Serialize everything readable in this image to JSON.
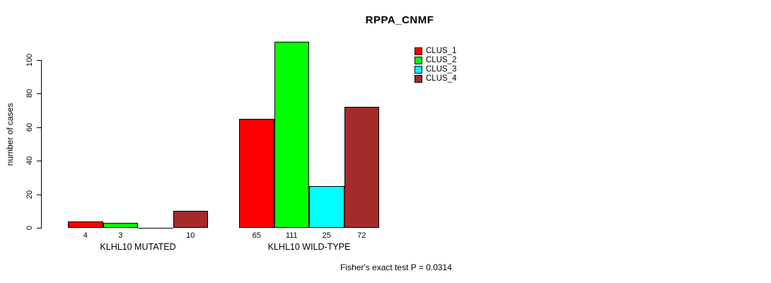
{
  "title": "RPPA_CNMF",
  "footer": "Fisher's exact test P = 0.0314",
  "y_axis": {
    "label": "number of cases",
    "ticks": [
      0,
      20,
      40,
      60,
      80,
      100
    ]
  },
  "legend": [
    {
      "label": "CLUS_1",
      "color": "#FF0000"
    },
    {
      "label": "CLUS_2",
      "color": "#00FF00"
    },
    {
      "label": "CLUS_3",
      "color": "#00FFFF"
    },
    {
      "label": "CLUS_4",
      "color": "#A52A2A"
    }
  ],
  "chart_data": {
    "type": "bar",
    "title": "RPPA_CNMF",
    "xlabel": "",
    "ylabel": "number of cases",
    "ylim": [
      0,
      117
    ],
    "axis_ticks": [
      0,
      20,
      40,
      60,
      80,
      100
    ],
    "grid": false,
    "legend_position": "top-right",
    "categories": [
      "KLHL10 MUTATED",
      "KLHL10 WILD-TYPE"
    ],
    "series": [
      {
        "name": "CLUS_1",
        "color": "#FF0000",
        "values": [
          4,
          65
        ]
      },
      {
        "name": "CLUS_2",
        "color": "#00FF00",
        "values": [
          3,
          111
        ]
      },
      {
        "name": "CLUS_3",
        "color": "#00FFFF",
        "values": [
          0,
          25
        ]
      },
      {
        "name": "CLUS_4",
        "color": "#A52A2A",
        "values": [
          10,
          72
        ]
      }
    ],
    "bar_labels": [
      [
        "4",
        "3",
        "",
        "10"
      ],
      [
        "65",
        "111",
        "25",
        "72"
      ]
    ],
    "annotation": "Fisher's exact test P = 0.0314"
  }
}
